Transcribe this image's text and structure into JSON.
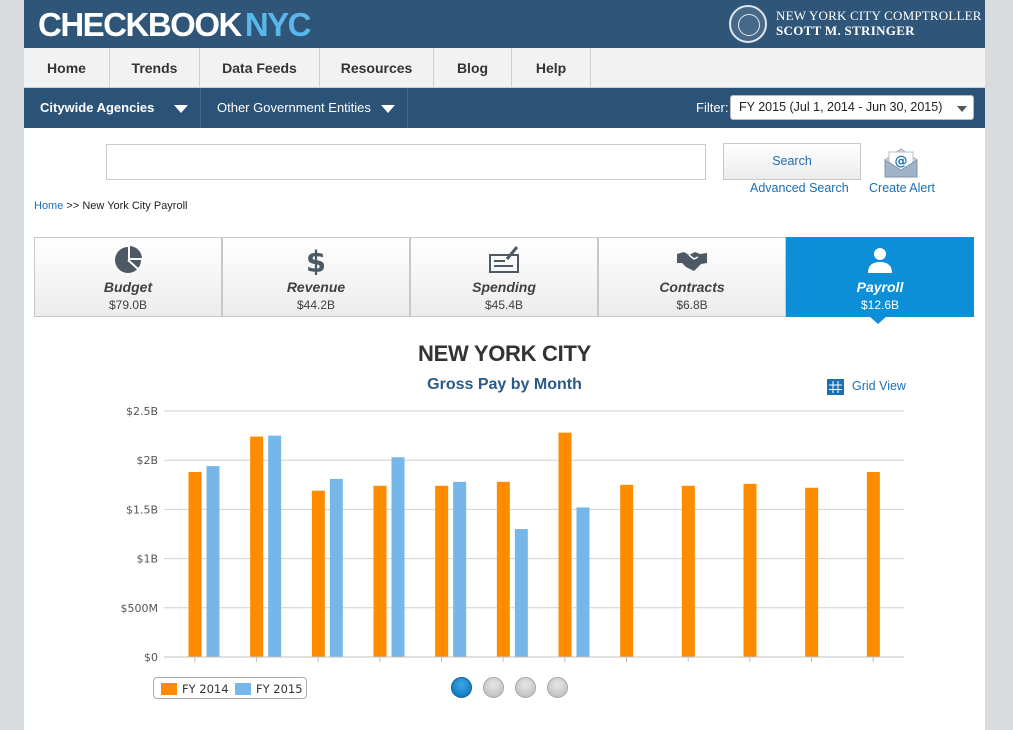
{
  "header": {
    "logo_main": "CHECKBOOK",
    "logo_accent": "NYC",
    "comptroller_line1": "NEW YORK CITY COMPTROLLER",
    "comptroller_line2": "SCOTT M. STRINGER"
  },
  "nav": {
    "items": [
      {
        "label": "Home"
      },
      {
        "label": "Trends"
      },
      {
        "label": "Data Feeds"
      },
      {
        "label": "Resources"
      },
      {
        "label": "Blog"
      },
      {
        "label": "Help"
      }
    ]
  },
  "subnav": {
    "citywide": "Citywide Agencies",
    "other": "Other Government Entities",
    "filter_label": "Filter:",
    "filter_value": "FY 2015 (Jul 1, 2014 - Jun 30, 2015)"
  },
  "search": {
    "placeholder": "",
    "button": "Search",
    "advanced": "Advanced Search",
    "create_alert": "Create Alert"
  },
  "breadcrumb": {
    "home": "Home",
    "separator": ">>",
    "current": "New York City Payroll"
  },
  "domains": [
    {
      "name": "Budget",
      "value": "$79.0B",
      "icon": "pie-chart-icon",
      "active": false
    },
    {
      "name": "Revenue",
      "value": "$44.2B",
      "icon": "dollar-icon",
      "active": false
    },
    {
      "name": "Spending",
      "value": "$45.4B",
      "icon": "check-icon",
      "active": false
    },
    {
      "name": "Contracts",
      "value": "$6.8B",
      "icon": "handshake-icon",
      "active": false
    },
    {
      "name": "Payroll",
      "value": "$12.6B",
      "icon": "person-icon",
      "active": true
    }
  ],
  "chart_title": "NEW YORK CITY",
  "grid_view": "Grid View",
  "colors": {
    "fy2014": "#ff8c00",
    "fy2015": "#76b6e8",
    "active_tab": "#0c8fd7",
    "header": "#2f5578"
  },
  "pager": {
    "count": 4,
    "active_index": 0
  },
  "chart_data": {
    "type": "bar",
    "title": "Gross Pay by Month",
    "xlabel": "",
    "ylabel": "",
    "categories": [
      "",
      "",
      "",
      "",
      "",
      "",
      "",
      "",
      "",
      "",
      "",
      ""
    ],
    "series": [
      {
        "name": "FY 2014",
        "values": [
          1.88,
          2.24,
          1.69,
          1.74,
          1.74,
          1.78,
          2.28,
          1.75,
          1.74,
          1.76,
          1.72,
          1.88
        ]
      },
      {
        "name": "FY 2015",
        "values": [
          1.94,
          2.25,
          1.81,
          2.03,
          1.78,
          1.3,
          1.52,
          null,
          null,
          null,
          null,
          null
        ]
      }
    ],
    "ylim": [
      0,
      2.5
    ],
    "yticks": [
      0,
      0.5,
      1,
      1.5,
      2,
      2.5
    ],
    "ytick_labels": [
      "$0",
      "$500M",
      "$1B",
      "$1.5B",
      "$2B",
      "$2.5B"
    ],
    "grid": true,
    "legend": "bottom-left"
  }
}
